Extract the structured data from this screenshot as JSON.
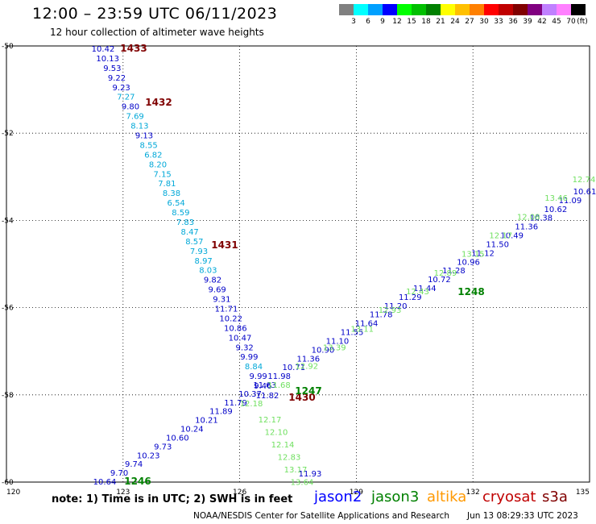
{
  "header": {
    "title": "12:00 – 23:59 UTC 06/11/2023",
    "subtitle": "12 hour collection of altimeter wave heights"
  },
  "legend": {
    "unit": "(ft)",
    "colors": [
      "#808080",
      "#00ffff",
      "#00a0ff",
      "#0000ff",
      "#00ff00",
      "#00c000",
      "#008000",
      "#ffff00",
      "#ffc000",
      "#ff8000",
      "#ff0000",
      "#c00000",
      "#800000",
      "#800080",
      "#c080ff",
      "#ff80ff",
      "#000000"
    ],
    "labels": [
      "3",
      "6",
      "9",
      "12",
      "15",
      "18",
      "21",
      "24",
      "27",
      "30",
      "33",
      "36",
      "39",
      "42",
      "45",
      "70"
    ]
  },
  "chart_data": {
    "type": "scatter",
    "x_ticks": [
      "120",
      "123",
      "126",
      "129",
      "132",
      "135"
    ],
    "y_ticks": [
      "-50",
      "-52",
      "-54",
      "-56",
      "-58",
      "-60"
    ],
    "xlim": [
      120,
      135
    ],
    "ylim": [
      -60,
      -50
    ],
    "track_colors": {
      "blue": "#0000c8",
      "cyan": "#00a8d8",
      "green": "#70e060",
      "darkred": "#800000",
      "darkgreen": "#008000"
    },
    "tracks": [
      {
        "pass_labels": [
          "1433",
          "1432",
          "1431",
          "1430"
        ],
        "values": [
          "10.42",
          "10.13",
          "9.53",
          "9.22",
          "9.23",
          "7.27",
          "9.80",
          "7.69",
          "8.13",
          "9.13",
          "8.55",
          "6.82",
          "8.20",
          "7.15",
          "7.81",
          "8.38",
          "6.54",
          "8.59",
          "7.83",
          "8.47",
          "8.57",
          "7.93",
          "8.97",
          "8.03",
          "9.82",
          "9.69",
          "9.31",
          "11.71",
          "10.22",
          "10.86",
          "10.47",
          "9.32",
          "9.99",
          "8.84",
          "9.99",
          "9.46",
          "11.82"
        ],
        "green_values": [
          "12.17",
          "12.10",
          "12.14",
          "12.83",
          "13.17",
          "13.64"
        ],
        "last_value": "11.93"
      },
      {
        "pass_labels": [
          "1246",
          "1247",
          "1248"
        ],
        "values": [
          "10.64",
          "9.70",
          "9.74",
          "10.23",
          "9.73",
          "10.60",
          "10.24",
          "10.21",
          "11.89",
          "11.79",
          "10.37",
          "11.63",
          "11.98",
          "10.71",
          "11.36",
          "10.90",
          "11.10",
          "11.55",
          "11.64",
          "11.78",
          "11.20",
          "11.29",
          "11.44",
          "10.72",
          "11.28",
          "10.96",
          "11.12",
          "11.50",
          "10.49",
          "11.36",
          "10.38",
          "10.62",
          "11.09",
          "10.61"
        ],
        "green_values": [
          "12.18",
          "11.68",
          "12.92",
          "13.39",
          "13.11",
          "12.93",
          "12.43",
          "12.89",
          "13.15",
          "12.17",
          "12.08",
          "13.46",
          "12.74"
        ]
      }
    ]
  },
  "footer": {
    "note": "note:  1) Time is in UTC; 2) SWH is in feet",
    "satellites": [
      {
        "name": "jason2",
        "color": "#0000ff"
      },
      {
        "name": "jason3",
        "color": "#008000"
      },
      {
        "name": "altika",
        "color": "#ff9900"
      },
      {
        "name": "cryosat",
        "color": "#c00000"
      },
      {
        "name": "s3a",
        "color": "#800000"
      }
    ],
    "credit": "NOAA/NESDIS Center for Satellite Applications and Research",
    "stamp": "Jun 13 08:29:33 UTC 2023"
  }
}
